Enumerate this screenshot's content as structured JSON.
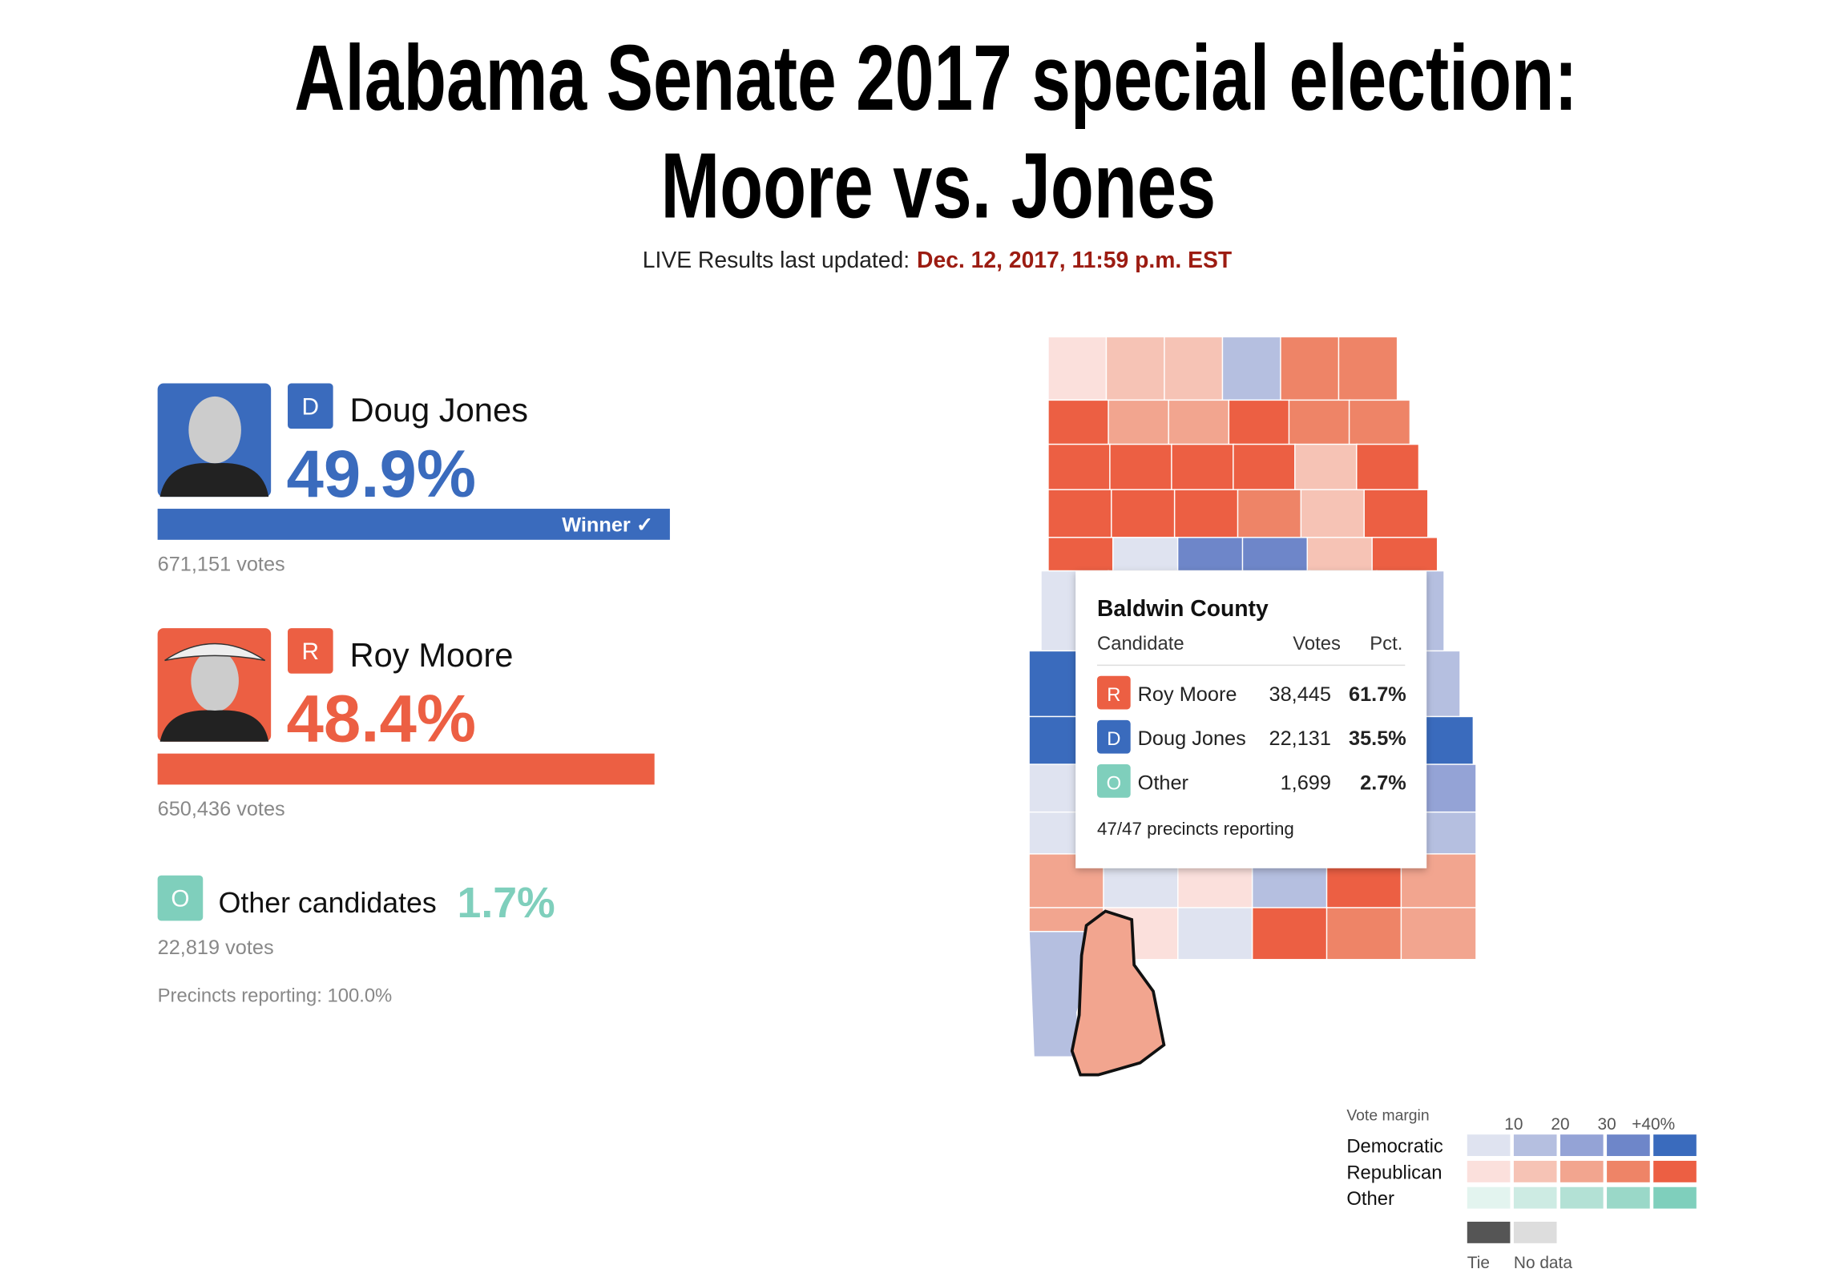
{
  "header": {
    "title_lines": [
      "Alabama Senate 2017 special election:",
      "Moore vs. Jones"
    ],
    "updated_label": "LIVE Results last updated:",
    "updated_time": "Dec. 12, 2017, 11:59 p.m. EST"
  },
  "candidates": [
    {
      "party": "D",
      "name": "Doug Jones",
      "pct": 49.9,
      "pct_label": "49.9%",
      "votes": "671,151 votes",
      "status": "Winner ✓"
    },
    {
      "party": "R",
      "name": "Roy Moore",
      "pct": 48.4,
      "pct_label": "48.4%",
      "votes": "650,436 votes"
    }
  ],
  "other": {
    "party": "O",
    "name": "Other candidates",
    "pct_label": "1.7%",
    "votes": "22,819 votes"
  },
  "precincts": "Precincts reporting: 100.0%",
  "tooltip": {
    "title": "Baldwin County",
    "columns": [
      "Candidate",
      "Votes",
      "Pct."
    ],
    "rows": [
      [
        "R",
        "Roy Moore",
        "38,445",
        "61.7%"
      ],
      [
        "D",
        "Doug Jones",
        "22,131",
        "35.5%"
      ],
      [
        "O",
        "Other",
        "1,699",
        "2.7%"
      ]
    ],
    "precincts": "47/47 precincts reporting"
  },
  "legend": {
    "title": "Vote margin",
    "ticks": [
      "10",
      "20",
      "30",
      "+40%"
    ],
    "rows": [
      "Democratic",
      "Republican",
      "Other"
    ],
    "tie": "Tie",
    "no_data": "No data"
  }
}
